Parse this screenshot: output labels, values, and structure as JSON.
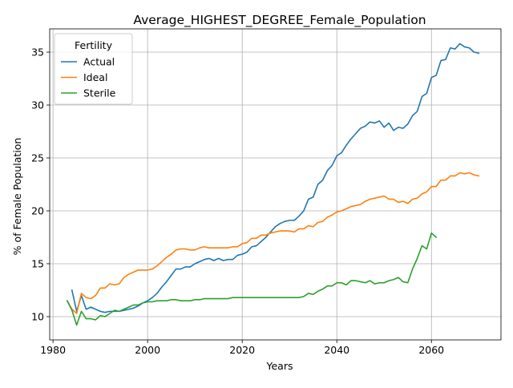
{
  "chart_data": {
    "type": "line",
    "title": "Average_HIGHEST_DEGREE_Female_Population",
    "xlabel": "Years",
    "ylabel": "% of Female Population",
    "xlim": [
      1979.3,
      2074.7
    ],
    "ylim": [
      7.8,
      37.2
    ],
    "xticks": [
      1980,
      2000,
      2020,
      2040,
      2060
    ],
    "yticks": [
      10,
      15,
      20,
      25,
      30,
      35
    ],
    "grid": true,
    "legend": {
      "title": "Fertility",
      "placement": "upper-left"
    },
    "series": [
      {
        "name": "Actual",
        "color": "#1f77b4",
        "x": [
          1984,
          1985,
          1986,
          1987,
          1988,
          1989,
          1990,
          1991,
          1992,
          1993,
          1994,
          1995,
          1996,
          1997,
          1998,
          1999,
          2000,
          2001,
          2002,
          2003,
          2004,
          2005,
          2006,
          2007,
          2008,
          2009,
          2010,
          2011,
          2012,
          2013,
          2014,
          2015,
          2016,
          2017,
          2018,
          2019,
          2020,
          2021,
          2022,
          2023,
          2024,
          2025,
          2026,
          2027,
          2028,
          2029,
          2030,
          2031,
          2032,
          2033,
          2034,
          2035,
          2036,
          2037,
          2038,
          2039,
          2040,
          2041,
          2042,
          2043,
          2044,
          2045,
          2046,
          2047,
          2048,
          2049,
          2050,
          2051,
          2052,
          2053,
          2054,
          2055,
          2056,
          2057,
          2058,
          2059,
          2060,
          2061,
          2062,
          2063,
          2064,
          2065,
          2066,
          2067,
          2068,
          2069,
          2070
        ],
        "y": [
          12.5,
          10.5,
          12.0,
          10.7,
          10.9,
          10.7,
          10.5,
          10.4,
          10.5,
          10.5,
          10.5,
          10.6,
          10.7,
          10.8,
          11.0,
          11.3,
          11.5,
          11.8,
          12.2,
          12.8,
          13.3,
          13.9,
          14.5,
          14.5,
          14.7,
          14.7,
          15.0,
          15.2,
          15.4,
          15.5,
          15.3,
          15.5,
          15.3,
          15.4,
          15.4,
          15.8,
          15.9,
          16.1,
          16.6,
          16.7,
          17.1,
          17.5,
          18.0,
          18.5,
          18.8,
          19.0,
          19.1,
          19.1,
          19.5,
          20.0,
          21.1,
          21.3,
          22.5,
          22.9,
          23.8,
          24.3,
          25.2,
          25.5,
          26.2,
          26.8,
          27.3,
          27.8,
          28.0,
          28.4,
          28.3,
          28.5,
          27.9,
          28.3,
          27.6,
          27.9,
          27.8,
          28.2,
          29.0,
          29.4,
          30.8,
          31.1,
          32.6,
          32.8,
          34.2,
          34.3,
          35.4,
          35.3,
          35.8,
          35.5,
          35.4,
          35.0,
          34.9
        ]
      },
      {
        "name": "Ideal",
        "color": "#ff7f0e",
        "x": [
          1983,
          1984,
          1985,
          1986,
          1987,
          1988,
          1989,
          1990,
          1991,
          1992,
          1993,
          1994,
          1995,
          1996,
          1997,
          1998,
          1999,
          2000,
          2001,
          2002,
          2003,
          2004,
          2005,
          2006,
          2007,
          2008,
          2009,
          2010,
          2011,
          2012,
          2013,
          2014,
          2015,
          2016,
          2017,
          2018,
          2019,
          2020,
          2021,
          2022,
          2023,
          2024,
          2025,
          2026,
          2027,
          2028,
          2029,
          2030,
          2031,
          2032,
          2033,
          2034,
          2035,
          2036,
          2037,
          2038,
          2039,
          2040,
          2041,
          2042,
          2043,
          2044,
          2045,
          2046,
          2047,
          2048,
          2049,
          2050,
          2051,
          2052,
          2053,
          2054,
          2055,
          2056,
          2057,
          2058,
          2059,
          2060,
          2061,
          2062,
          2063,
          2064,
          2065,
          2066,
          2067,
          2068,
          2069,
          2070
        ],
        "y": [
          11.5,
          10.7,
          10.3,
          12.2,
          11.8,
          11.7,
          12.0,
          12.7,
          12.7,
          13.1,
          13.0,
          13.1,
          13.7,
          14.0,
          14.2,
          14.4,
          14.4,
          14.4,
          14.5,
          14.8,
          15.2,
          15.6,
          15.9,
          16.3,
          16.4,
          16.4,
          16.3,
          16.3,
          16.5,
          16.6,
          16.5,
          16.5,
          16.5,
          16.5,
          16.5,
          16.6,
          16.6,
          16.9,
          17.0,
          17.4,
          17.4,
          17.7,
          17.7,
          17.9,
          18.0,
          18.1,
          18.1,
          18.1,
          18.0,
          18.3,
          18.3,
          18.6,
          18.5,
          18.9,
          19.0,
          19.4,
          19.6,
          19.9,
          20.0,
          20.2,
          20.4,
          20.5,
          20.6,
          20.9,
          21.1,
          21.2,
          21.3,
          21.4,
          21.1,
          21.1,
          20.8,
          20.9,
          20.7,
          21.1,
          21.2,
          21.6,
          21.8,
          22.3,
          22.3,
          22.9,
          22.9,
          23.3,
          23.3,
          23.6,
          23.5,
          23.6,
          23.4,
          23.3
        ]
      },
      {
        "name": "Sterile",
        "color": "#2ca02c",
        "x": [
          1983,
          1984,
          1985,
          1986,
          1987,
          1988,
          1989,
          1990,
          1991,
          1992,
          1993,
          1994,
          1995,
          1996,
          1997,
          1998,
          1999,
          2000,
          2001,
          2002,
          2003,
          2004,
          2005,
          2006,
          2007,
          2008,
          2009,
          2010,
          2011,
          2012,
          2013,
          2014,
          2015,
          2016,
          2017,
          2018,
          2019,
          2020,
          2021,
          2022,
          2023,
          2024,
          2025,
          2026,
          2027,
          2028,
          2029,
          2030,
          2031,
          2032,
          2033,
          2034,
          2035,
          2036,
          2037,
          2038,
          2039,
          2040,
          2041,
          2042,
          2043,
          2044,
          2045,
          2046,
          2047,
          2048,
          2049,
          2050,
          2051,
          2052,
          2053,
          2054,
          2055,
          2056,
          2057,
          2058,
          2059,
          2060,
          2061
        ],
        "y": [
          11.5,
          10.6,
          9.2,
          10.5,
          9.8,
          9.8,
          9.7,
          10.1,
          10.0,
          10.3,
          10.6,
          10.5,
          10.7,
          10.9,
          11.1,
          11.1,
          11.3,
          11.4,
          11.4,
          11.5,
          11.5,
          11.5,
          11.6,
          11.6,
          11.5,
          11.5,
          11.5,
          11.6,
          11.6,
          11.7,
          11.7,
          11.7,
          11.7,
          11.7,
          11.7,
          11.8,
          11.8,
          11.8,
          11.8,
          11.8,
          11.8,
          11.8,
          11.8,
          11.8,
          11.8,
          11.8,
          11.8,
          11.8,
          11.8,
          11.8,
          11.9,
          12.2,
          12.1,
          12.4,
          12.6,
          12.9,
          12.9,
          13.2,
          13.2,
          13.0,
          13.4,
          13.4,
          13.3,
          13.2,
          13.4,
          13.1,
          13.2,
          13.2,
          13.4,
          13.5,
          13.7,
          13.3,
          13.2,
          14.5,
          15.5,
          16.7,
          16.4,
          17.9,
          17.5
        ]
      }
    ]
  }
}
